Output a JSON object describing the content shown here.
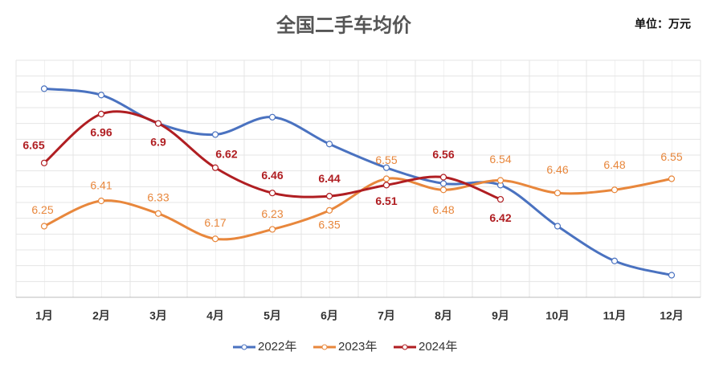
{
  "chart_data": {
    "type": "line",
    "title": "全国二手车均价",
    "unit": "单位：万元",
    "categories": [
      "1月",
      "2月",
      "3月",
      "4月",
      "5月",
      "6月",
      "7月",
      "8月",
      "9月",
      "10月",
      "11月",
      "12月"
    ],
    "ylim": [
      5.8,
      7.3
    ],
    "series": [
      {
        "name": "2022年",
        "color": "#4a72c0",
        "values": [
          7.12,
          7.08,
          6.9,
          6.83,
          6.94,
          6.77,
          6.62,
          6.52,
          6.51,
          6.25,
          6.03,
          5.94
        ]
      },
      {
        "name": "2023年",
        "color": "#e8873c",
        "values": [
          6.25,
          6.41,
          6.33,
          6.17,
          6.23,
          6.35,
          6.55,
          6.48,
          6.54,
          6.46,
          6.48,
          6.55
        ],
        "labels": true
      },
      {
        "name": "2024年",
        "color": "#b01e22",
        "values": [
          6.65,
          6.96,
          6.9,
          6.62,
          6.46,
          6.44,
          6.51,
          6.56,
          6.42,
          null,
          null,
          null
        ],
        "labels": true
      }
    ]
  }
}
